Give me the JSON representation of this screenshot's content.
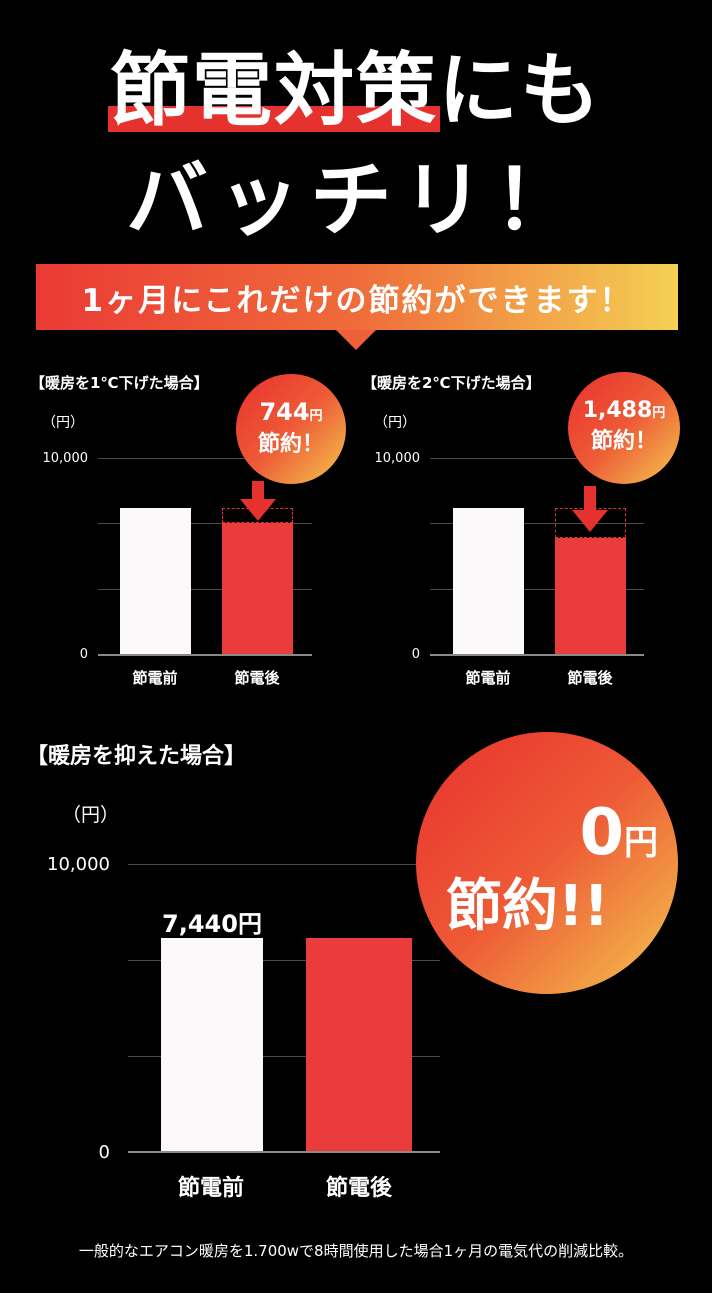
{
  "headline": {
    "line1_mark": "節電対策",
    "line1_rest": "にも",
    "line2": "バッチリ！"
  },
  "banner": {
    "text": "1ヶ月にこれだけの節約ができます！"
  },
  "colors": {
    "accent": "#ea3a34",
    "gradient_end": "#f4d054",
    "bar_before": "#fbf9fa",
    "bar_after": "#ea3c3a"
  },
  "charts": {
    "c1": {
      "title": "【暖房を1℃下げた場合】",
      "unit": "（円）",
      "ticks": [
        "10,000",
        "0"
      ],
      "categories": [
        "節電前",
        "節電後"
      ],
      "bubble_amount": "744",
      "bubble_unit": "円",
      "bubble_text": "節約！"
    },
    "c2": {
      "title": "【暖房を2℃下げた場合】",
      "unit": "（円）",
      "ticks": [
        "10,000",
        "0"
      ],
      "categories": [
        "節電前",
        "節電後"
      ],
      "bubble_amount": "1,488",
      "bubble_unit": "円",
      "bubble_text": "節約！"
    },
    "c3": {
      "title": "【暖房を抑えた場合】",
      "unit": "（円）",
      "ticks": [
        "10,000",
        "0"
      ],
      "categories": [
        "節電前",
        "節電後"
      ],
      "data_label": "7,440円",
      "bubble_amount": "0",
      "bubble_unit": "円",
      "bubble_text": "節約!!"
    }
  },
  "chart_data": [
    {
      "type": "bar",
      "title": "【暖房を1℃下げた場合】",
      "ylabel": "（円）",
      "ylim": [
        0,
        10000
      ],
      "categories": [
        "節電前",
        "節電後"
      ],
      "values": [
        7440,
        6696
      ],
      "annotation": "744円 節約！"
    },
    {
      "type": "bar",
      "title": "【暖房を2℃下げた場合】",
      "ylabel": "（円）",
      "ylim": [
        0,
        10000
      ],
      "categories": [
        "節電前",
        "節電後"
      ],
      "values": [
        7440,
        5952
      ],
      "annotation": "1,488円 節約！"
    },
    {
      "type": "bar",
      "title": "【暖房を抑えた場合】",
      "ylabel": "（円）",
      "ylim": [
        0,
        10000
      ],
      "categories": [
        "節電前",
        "節電後"
      ],
      "values": [
        7440,
        7440
      ],
      "data_labels": [
        "7,440円",
        ""
      ],
      "annotation": "0円 節約!!"
    }
  ],
  "footnote": "一般的なエアコン暖房を1.700wで8時間使用した場合1ヶ月の電気代の削減比較。"
}
